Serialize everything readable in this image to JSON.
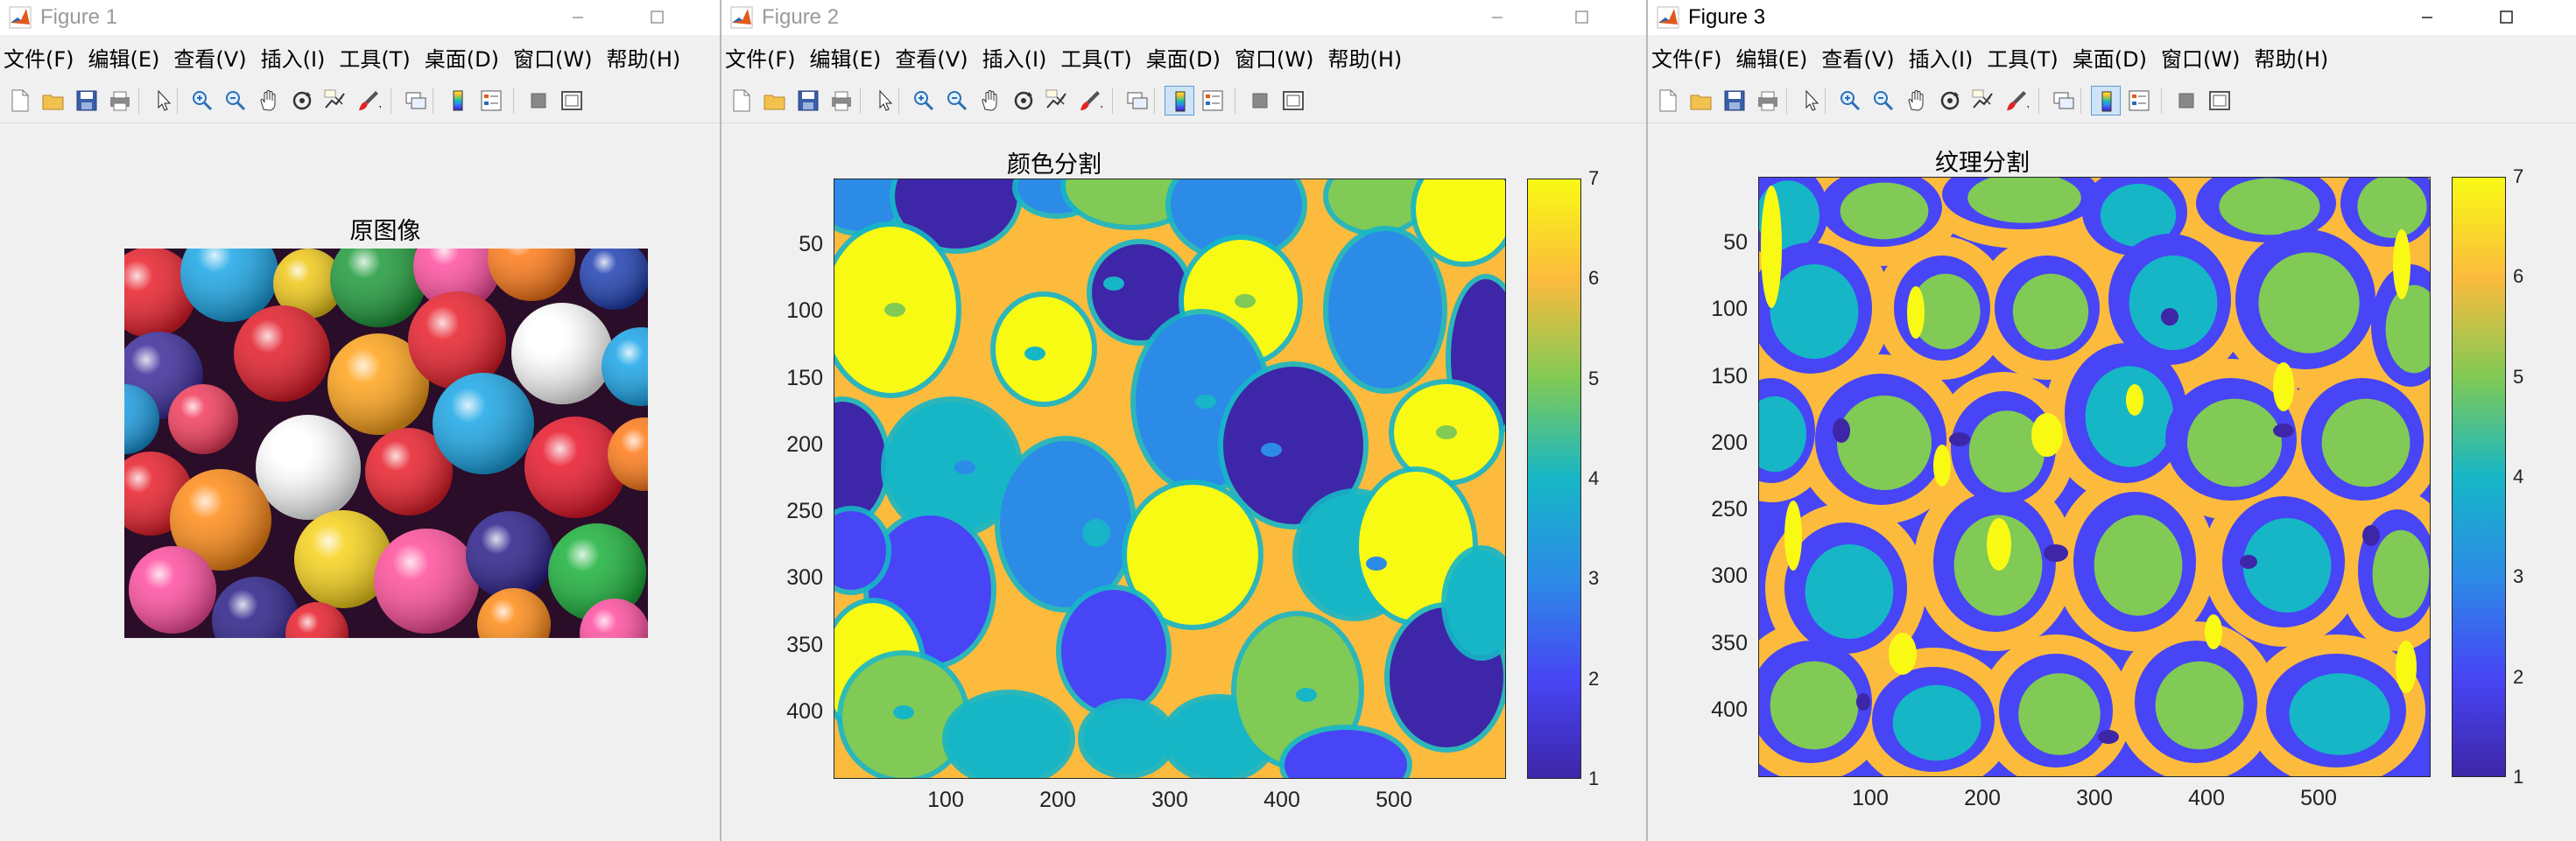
{
  "colors": {
    "parula": [
      "#3e26a8",
      "#4745f5",
      "#2c8be7",
      "#16b6c6",
      "#80ca55",
      "#fcbb3d",
      "#f9fa14"
    ]
  },
  "menus": [
    "文件(F)",
    "编辑(E)",
    "查看(V)",
    "插入(I)",
    "工具(T)",
    "桌面(D)",
    "窗口(W)",
    "帮助(H)"
  ],
  "toolbar_icons": [
    "new-figure-icon",
    "open-file-icon",
    "save-icon",
    "print-icon",
    "pointer-icon",
    "zoom-in-icon",
    "zoom-out-icon",
    "pan-icon",
    "rotate-3d-icon",
    "data-cursor-icon",
    "brush-icon",
    "link-plot-icon",
    "colorbar-icon",
    "legend-icon",
    "hide-plot-tools-icon",
    "show-plot-tools-icon"
  ],
  "figures": [
    {
      "window_title": "Figure 1",
      "axes_title": "原图像"
    },
    {
      "window_title": "Figure 2",
      "axes_title": "颜色分割",
      "yticks": [
        "50",
        "100",
        "150",
        "200",
        "250",
        "300",
        "350",
        "400"
      ],
      "xticks": [
        "100",
        "200",
        "300",
        "400",
        "500"
      ],
      "cbticks": [
        "1",
        "2",
        "3",
        "4",
        "5",
        "6",
        "7"
      ]
    },
    {
      "window_title": "Figure 3",
      "axes_title": "纹理分割",
      "yticks": [
        "50",
        "100",
        "150",
        "200",
        "250",
        "300",
        "350",
        "400"
      ],
      "xticks": [
        "100",
        "200",
        "300",
        "400",
        "500"
      ],
      "cbticks": [
        "1",
        "2",
        "3",
        "4",
        "5",
        "6",
        "7"
      ]
    }
  ]
}
